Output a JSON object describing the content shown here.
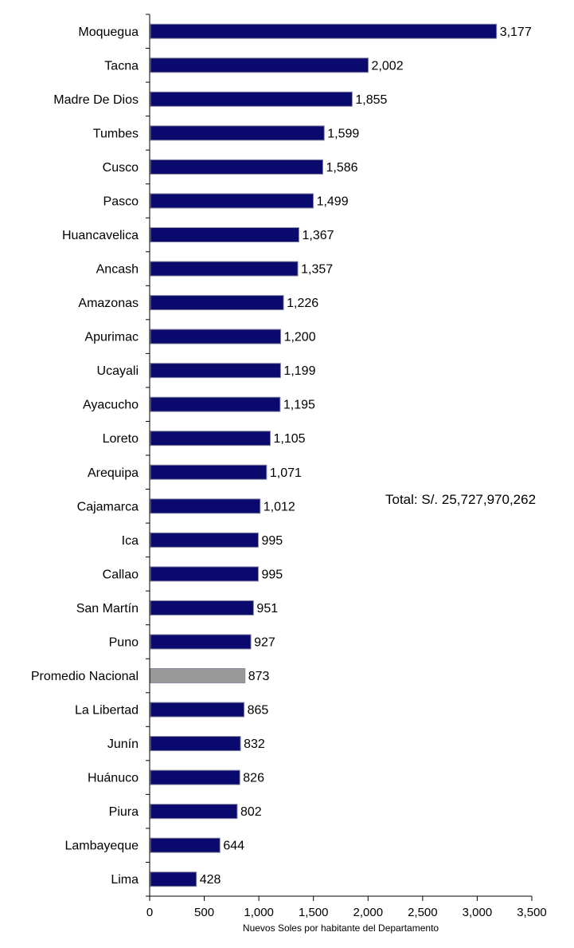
{
  "chart_data": {
    "type": "bar",
    "orientation": "horizontal",
    "categories": [
      "Moquegua",
      "Tacna",
      "Madre De Dios",
      "Tumbes",
      "Cusco",
      "Pasco",
      "Huancavelica",
      "Ancash",
      "Amazonas",
      "Apurimac",
      "Ucayali",
      "Ayacucho",
      "Loreto",
      "Arequipa",
      "Cajamarca",
      "Ica",
      "Callao",
      "San Martín",
      "Puno",
      "Promedio Nacional",
      "La Libertad",
      "Junín",
      "Huánuco",
      "Piura",
      "Lambayeque",
      "Lima"
    ],
    "values": [
      3177,
      2002,
      1855,
      1599,
      1586,
      1499,
      1367,
      1357,
      1226,
      1200,
      1199,
      1195,
      1105,
      1071,
      1012,
      995,
      995,
      951,
      927,
      873,
      865,
      832,
      826,
      802,
      644,
      428
    ],
    "value_labels": [
      "3,177",
      "2,002",
      "1,855",
      "1,599",
      "1,586",
      "1,499",
      "1,367",
      "1,357",
      "1,226",
      "1,200",
      "1,199",
      "1,195",
      "1,105",
      "1,071",
      "1,012",
      "995",
      "995",
      "951",
      "927",
      "873",
      "865",
      "832",
      "826",
      "802",
      "644",
      "428"
    ],
    "highlight_category": "Promedio Nacional",
    "colors": {
      "bar": "#0a0a6e",
      "highlight": "#999999",
      "bar_border": "#8a8aa0"
    },
    "xlim": [
      0,
      3500
    ],
    "xticks": [
      0,
      500,
      1000,
      1500,
      2000,
      2500,
      3000,
      3500
    ],
    "xtick_labels": [
      "0",
      "500",
      "1,000",
      "1,500",
      "2,000",
      "2,500",
      "3,000",
      "3,500"
    ],
    "xlabel": "Nuevos Soles por habitante del Departamento",
    "ylabel": "",
    "title": "",
    "grid": false,
    "annotation": "Total: S/. 25,727,970,262"
  }
}
